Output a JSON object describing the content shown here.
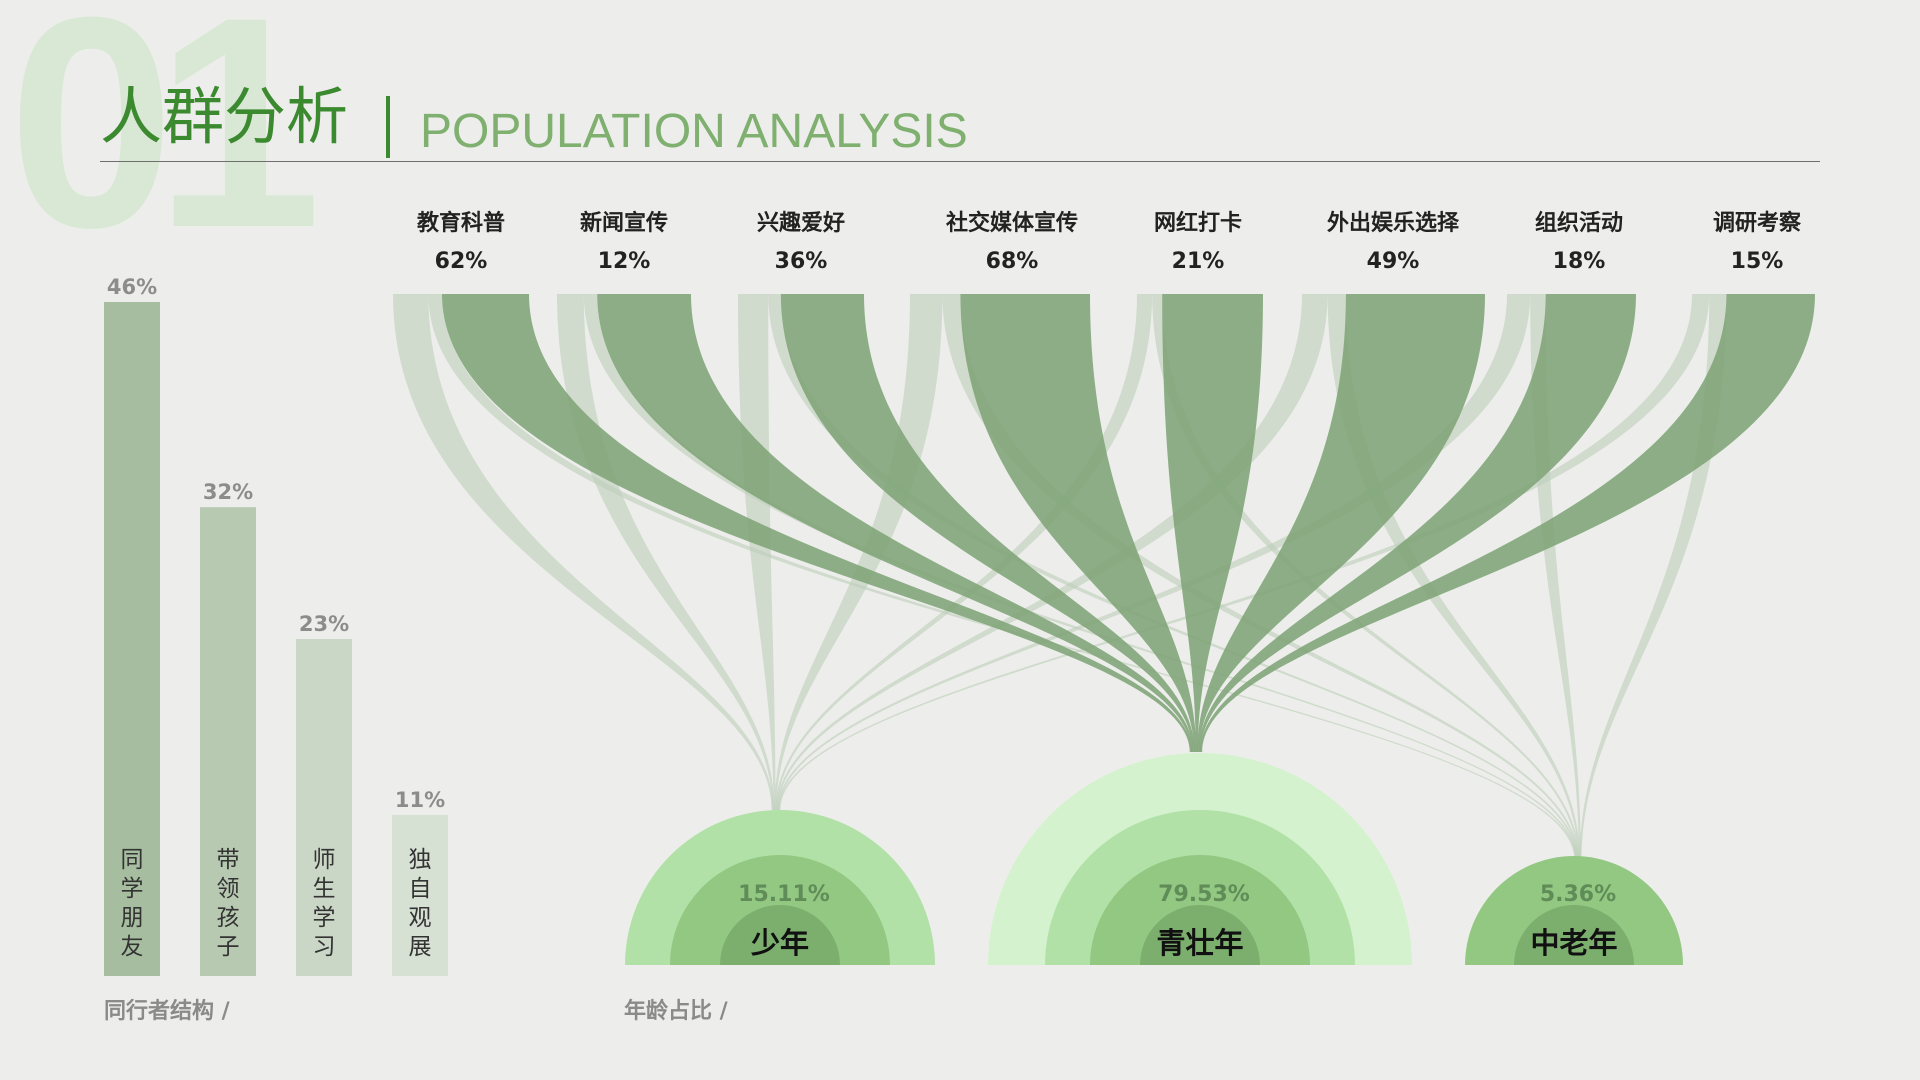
{
  "header": {
    "big_number": "01",
    "title_zh": "人群分析",
    "title_en": "POPULATION ANALYSIS"
  },
  "captions": {
    "companion": "同行者结构 /",
    "age": "年龄占比 /"
  },
  "colors": {
    "background": "#edeeeb",
    "title_green": "#3c8a2f",
    "title_en_green": "#7fb070",
    "flow_dark": "#7fa478",
    "flow_light": "#bfcfbb",
    "bar_1": "#a6bd9f",
    "bar_2": "#b8c9b2",
    "bar_3": "#cad6c6",
    "bar_4": "#d6e0d3",
    "arc_outer": "#b1e1a7",
    "arc_mid": "#93c883",
    "arc_inner": "#7caf6e",
    "arc_pale": "#d3f2cd"
  },
  "chart_data": [
    {
      "type": "bar",
      "title": "同行者结构 /",
      "categories": [
        "同学朋友",
        "带领孩子",
        "师生学习",
        "独自观展"
      ],
      "values": [
        46,
        32,
        23,
        11
      ],
      "value_labels": [
        "46%",
        "32%",
        "23%",
        "11%"
      ],
      "ylim": [
        0,
        46
      ],
      "grid": false
    },
    {
      "type": "sankey",
      "title": "",
      "sources": [
        {
          "name": "教育科普",
          "label": "62%",
          "value": 62
        },
        {
          "name": "新闻宣传",
          "label": "12%",
          "value": 12
        },
        {
          "name": "兴趣爱好",
          "label": "36%",
          "value": 36
        },
        {
          "name": "社交媒体宣传",
          "label": "68%",
          "value": 68
        },
        {
          "name": "网红打卡",
          "label": "21%",
          "value": 21
        },
        {
          "name": "外出娱乐选择",
          "label": "49%",
          "value": 49
        },
        {
          "name": "组织活动",
          "label": "18%",
          "value": 18
        },
        {
          "name": "调研考察",
          "label": "15%",
          "value": 15
        }
      ],
      "targets": [
        {
          "name": "少年",
          "label": "15.11%",
          "value": 15.11
        },
        {
          "name": "青壮年",
          "label": "79.53%",
          "value": 79.53
        },
        {
          "name": "中老年",
          "label": "5.36%",
          "value": 5.36
        }
      ]
    },
    {
      "type": "pie",
      "title": "年龄占比 /",
      "categories": [
        "少年",
        "青壮年",
        "中老年"
      ],
      "values": [
        15.11,
        79.53,
        5.36
      ],
      "value_labels": [
        "15.11%",
        "79.53%",
        "5.36%"
      ]
    }
  ]
}
